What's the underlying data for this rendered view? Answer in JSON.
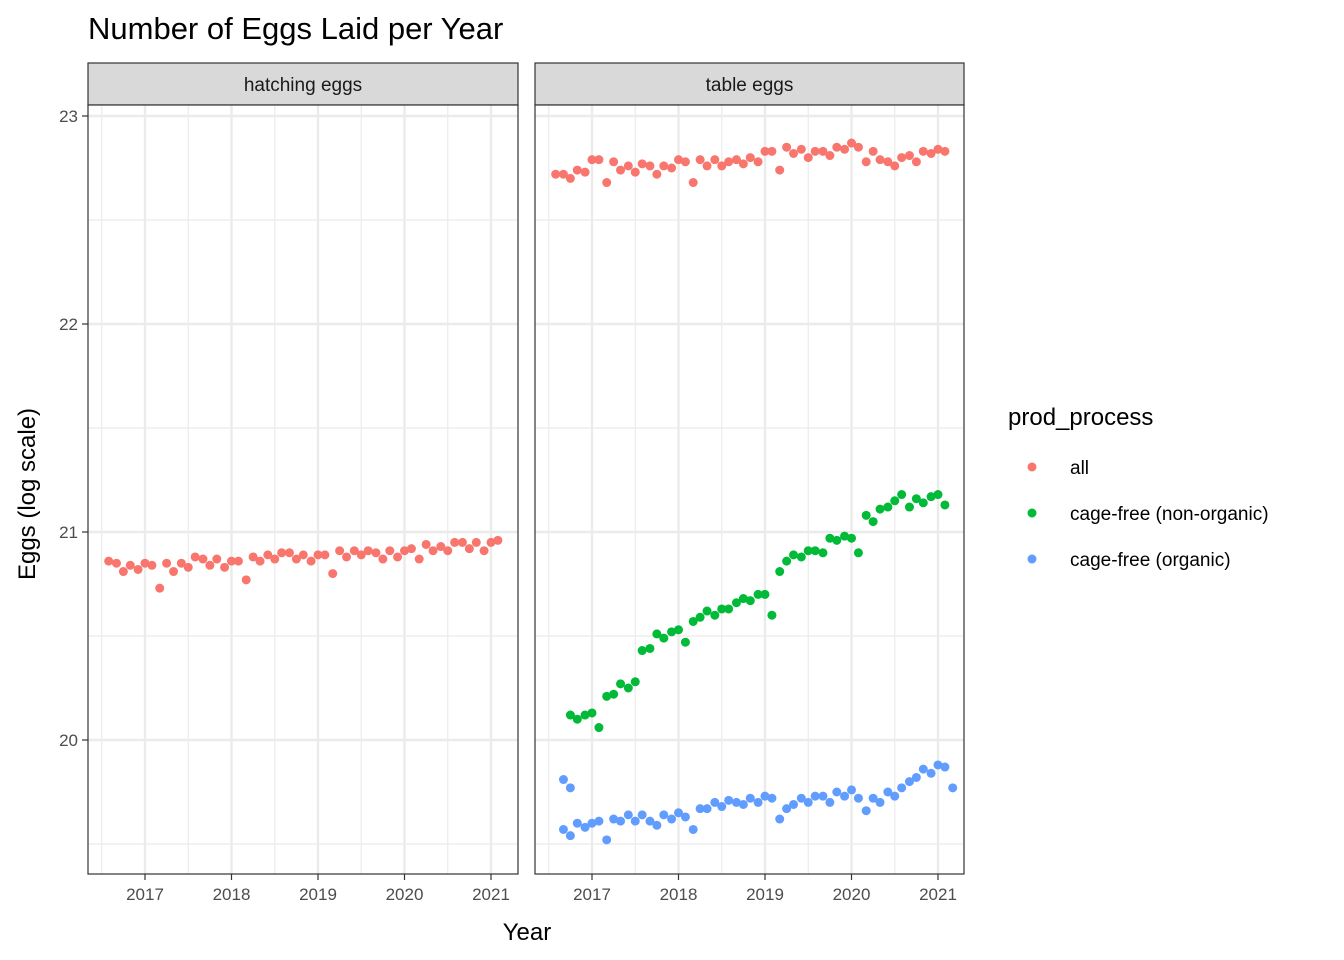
{
  "colors": {
    "all": "#F8766D",
    "cage_free_non_organic": "#00BA38",
    "cage_free_organic": "#619CFF",
    "strip_bg": "#D9D9D9",
    "grid": "#EBEBEB",
    "panel_border": "#333333"
  },
  "chart_data": {
    "type": "scatter",
    "title": "Number of Eggs Laid per Year",
    "xlabel": "Year",
    "ylabel": "Eggs (log scale)",
    "ylim": [
      19.5,
      23.05
    ],
    "y_ticks": [
      20,
      21,
      22,
      23
    ],
    "x_ticks": [
      2017,
      2018,
      2019,
      2020,
      2021
    ],
    "grid": true,
    "legend": {
      "title": "prod_process",
      "position": "right",
      "entries": [
        "all",
        "cage-free (non-organic)",
        "cage-free (organic)"
      ]
    },
    "panels": [
      {
        "name": "hatching eggs",
        "xlim": [
          2016.45,
          2021.3
        ],
        "series": [
          {
            "name": "all",
            "x": [
              2016.58,
              2016.67,
              2016.75,
              2016.83,
              2016.92,
              2017.0,
              2017.08,
              2017.17,
              2017.25,
              2017.33,
              2017.42,
              2017.5,
              2017.58,
              2017.67,
              2017.75,
              2017.83,
              2017.92,
              2018.0,
              2018.08,
              2018.17,
              2018.25,
              2018.33,
              2018.42,
              2018.5,
              2018.58,
              2018.67,
              2018.75,
              2018.83,
              2018.92,
              2019.0,
              2019.08,
              2019.17,
              2019.25,
              2019.33,
              2019.42,
              2019.5,
              2019.58,
              2019.67,
              2019.75,
              2019.83,
              2019.92,
              2020.0,
              2020.08,
              2020.17,
              2020.25,
              2020.33,
              2020.42,
              2020.5,
              2020.58,
              2020.67,
              2020.75,
              2020.83,
              2020.92,
              2021.0,
              2021.08
            ],
            "y": [
              20.86,
              20.85,
              20.81,
              20.84,
              20.82,
              20.85,
              20.84,
              20.73,
              20.85,
              20.81,
              20.85,
              20.83,
              20.88,
              20.87,
              20.84,
              20.87,
              20.83,
              20.86,
              20.86,
              20.77,
              20.88,
              20.86,
              20.89,
              20.87,
              20.9,
              20.9,
              20.87,
              20.89,
              20.86,
              20.89,
              20.89,
              20.8,
              20.91,
              20.88,
              20.91,
              20.89,
              20.91,
              20.9,
              20.87,
              20.91,
              20.88,
              20.91,
              20.92,
              20.87,
              20.94,
              20.91,
              20.93,
              20.91,
              20.95,
              20.95,
              20.92,
              20.95,
              20.91,
              20.95,
              20.96
            ]
          }
        ]
      },
      {
        "name": "table eggs",
        "xlim": [
          2016.45,
          2021.3
        ],
        "series": [
          {
            "name": "all",
            "x": [
              2016.58,
              2016.67,
              2016.75,
              2016.83,
              2016.92,
              2017.0,
              2017.08,
              2017.17,
              2017.25,
              2017.33,
              2017.42,
              2017.5,
              2017.58,
              2017.67,
              2017.75,
              2017.83,
              2017.92,
              2018.0,
              2018.08,
              2018.17,
              2018.25,
              2018.33,
              2018.42,
              2018.5,
              2018.58,
              2018.67,
              2018.75,
              2018.83,
              2018.92,
              2019.0,
              2019.08,
              2019.17,
              2019.25,
              2019.33,
              2019.42,
              2019.5,
              2019.58,
              2019.67,
              2019.75,
              2019.83,
              2019.92,
              2020.0,
              2020.08,
              2020.17,
              2020.25,
              2020.33,
              2020.42,
              2020.5,
              2020.58,
              2020.67,
              2020.75,
              2020.83,
              2020.92,
              2021.0,
              2021.08
            ],
            "y": [
              22.72,
              22.72,
              22.7,
              22.74,
              22.73,
              22.79,
              22.79,
              22.68,
              22.78,
              22.74,
              22.76,
              22.73,
              22.77,
              22.76,
              22.72,
              22.76,
              22.75,
              22.79,
              22.78,
              22.68,
              22.79,
              22.76,
              22.79,
              22.76,
              22.78,
              22.79,
              22.77,
              22.8,
              22.78,
              22.83,
              22.83,
              22.74,
              22.85,
              22.82,
              22.84,
              22.8,
              22.83,
              22.83,
              22.81,
              22.85,
              22.84,
              22.87,
              22.85,
              22.78,
              22.83,
              22.79,
              22.78,
              22.76,
              22.8,
              22.81,
              22.78,
              22.83,
              22.82,
              22.84,
              22.83
            ]
          },
          {
            "name": "cage-free (non-organic)",
            "x": [
              2016.67,
              2016.75,
              2016.83,
              2016.92,
              2017.0,
              2017.08,
              2017.17,
              2017.25,
              2017.33,
              2017.42,
              2017.5,
              2017.58,
              2017.67,
              2017.75,
              2017.83,
              2017.92,
              2018.0,
              2018.08,
              2018.17,
              2018.25,
              2018.33,
              2018.42,
              2018.5,
              2018.58,
              2018.67,
              2018.75,
              2018.83,
              2018.92,
              2019.0,
              2019.08,
              2019.17,
              2019.25,
              2019.33,
              2019.42,
              2019.5,
              2019.58,
              2019.67,
              2019.75,
              2019.83,
              2019.92,
              2020.0,
              2020.08,
              2020.17,
              2020.25,
              2020.33,
              2020.42,
              2020.5,
              2020.58,
              2020.67,
              2020.75,
              2020.83,
              2020.92,
              2021.0,
              2021.08,
              2021.17
            ],
            "y": [
              null,
              20.12,
              20.1,
              20.12,
              20.13,
              20.06,
              20.21,
              20.22,
              20.27,
              20.25,
              20.28,
              20.43,
              20.44,
              20.51,
              20.49,
              20.52,
              20.53,
              20.47,
              20.57,
              20.59,
              20.62,
              20.6,
              20.63,
              20.63,
              20.66,
              20.68,
              20.67,
              20.7,
              20.7,
              20.6,
              20.81,
              20.86,
              20.89,
              20.88,
              20.91,
              20.91,
              20.9,
              20.97,
              20.96,
              20.98,
              20.97,
              20.9,
              21.08,
              21.05,
              21.11,
              21.12,
              21.15,
              21.18,
              21.12,
              21.16,
              21.14,
              21.17,
              21.18,
              21.13,
              null
            ]
          },
          {
            "name": "cage-free (organic)",
            "x": [
              2016.67,
              2016.75,
              2016.83,
              2016.92,
              2017.0,
              2017.08,
              2017.17,
              2017.25,
              2017.33,
              2017.42,
              2017.5,
              2017.58,
              2017.67,
              2017.75,
              2017.83,
              2017.92,
              2018.0,
              2018.08,
              2018.17,
              2018.25,
              2018.33,
              2018.42,
              2018.5,
              2018.58,
              2018.67,
              2018.75,
              2018.83,
              2018.92,
              2019.0,
              2019.08,
              2019.17,
              2019.25,
              2019.33,
              2019.42,
              2019.5,
              2019.58,
              2019.67,
              2019.75,
              2019.83,
              2019.92,
              2020.0,
              2020.08,
              2020.17,
              2020.25,
              2020.33,
              2020.42,
              2020.5,
              2020.58,
              2020.67,
              2020.75,
              2020.83,
              2020.92,
              2021.0,
              2021.08,
              2021.17
            ],
            "y": [
              19.57,
              19.54,
              19.6,
              19.58,
              19.6,
              19.61,
              19.52,
              19.62,
              19.61,
              19.64,
              19.61,
              19.64,
              19.61,
              19.59,
              19.64,
              19.62,
              19.65,
              19.63,
              19.57,
              19.67,
              19.67,
              19.7,
              19.68,
              19.71,
              19.7,
              19.69,
              19.72,
              19.7,
              19.73,
              19.72,
              19.62,
              19.67,
              19.69,
              19.72,
              19.7,
              19.73,
              19.73,
              19.7,
              19.75,
              19.73,
              19.76,
              19.72,
              19.66,
              19.72,
              19.7,
              19.75,
              19.73,
              19.77,
              19.8,
              19.82,
              19.86,
              19.84,
              19.88,
              19.87,
              19.77
            ]
          }
        ]
      }
    ],
    "extra_points": [
      {
        "panel": "table eggs",
        "series": "cage-free (organic)",
        "x": 2016.67,
        "y": 19.81
      },
      {
        "panel": "table eggs",
        "series": "cage-free (organic)",
        "x": 2016.75,
        "y": 19.77
      }
    ]
  }
}
